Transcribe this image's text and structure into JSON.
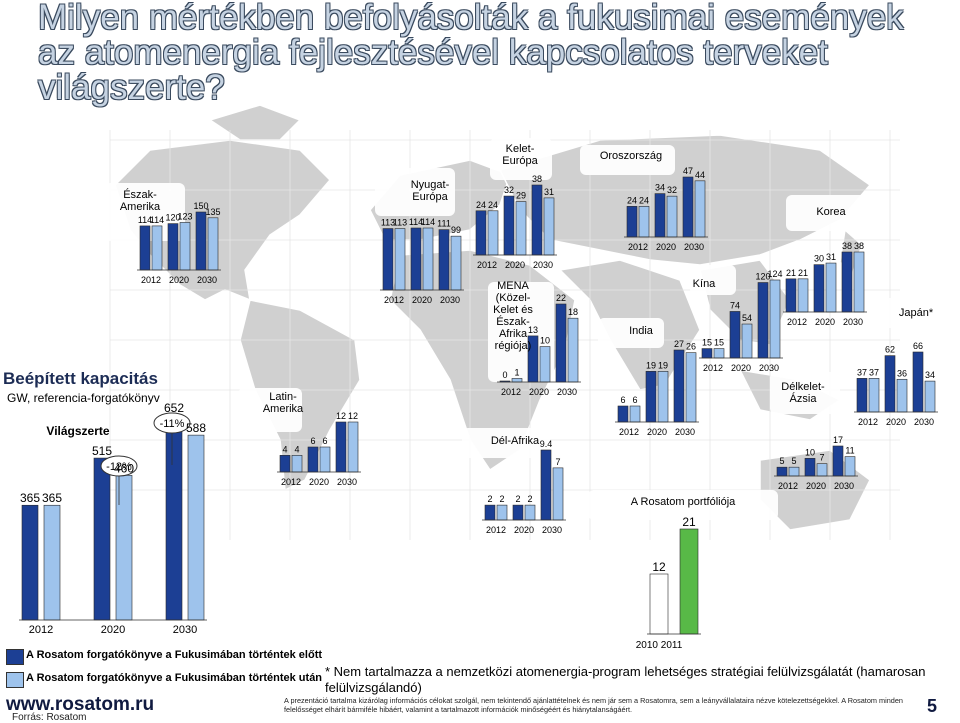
{
  "title": "Milyen mértékben befolyásolták a fukusimai események az atomenergia fejlesztésével kapcsolatos terveket világszerte?",
  "colors": {
    "before": "#1c3f94",
    "after": "#9ec3ec",
    "rosatom": "#58b947",
    "map": "#d0d0d0"
  },
  "side": {
    "heading": "Beépített kapacitás",
    "subheading": "GW, referencia-forgatókönyv"
  },
  "years": [
    "2012",
    "2020",
    "2030"
  ],
  "chart_data": [
    {
      "type": "bar",
      "region": "Világszerte",
      "categories": [
        "2012",
        "2020",
        "2030"
      ],
      "series": [
        {
          "values": [
            365,
            515,
            652
          ]
        },
        {
          "values": [
            365,
            460,
            588
          ]
        }
      ],
      "annotations": [
        "-12%",
        "-11%"
      ]
    },
    {
      "type": "bar",
      "region": "Észak-Amerika",
      "categories": [
        "2012",
        "2020",
        "2030"
      ],
      "series": [
        {
          "values": [
            114,
            120,
            150
          ]
        },
        {
          "values": [
            114,
            123,
            135
          ]
        }
      ]
    },
    {
      "type": "bar",
      "region": "Latin-Amerika",
      "categories": [
        "2012",
        "2020",
        "2030"
      ],
      "series": [
        {
          "values": [
            4,
            6,
            12
          ]
        },
        {
          "values": [
            4,
            6,
            12
          ]
        }
      ]
    },
    {
      "type": "bar",
      "region": "Nyugat-Európa",
      "categories": [
        "2012",
        "2020",
        "2030"
      ],
      "series": [
        {
          "values": [
            113,
            114,
            111
          ]
        },
        {
          "values": [
            113,
            114,
            99
          ]
        }
      ]
    },
    {
      "type": "bar",
      "region": "Kelet-Európa",
      "categories": [
        "2012",
        "2020",
        "2030"
      ],
      "series": [
        {
          "values": [
            24,
            32,
            38
          ]
        },
        {
          "values": [
            24,
            29,
            31
          ]
        }
      ]
    },
    {
      "type": "bar",
      "region": "MENA (Közel-Kelet és Észak-Afrika régiója)",
      "categories": [
        "2012",
        "2020",
        "2030"
      ],
      "series": [
        {
          "values": [
            0,
            13,
            22
          ]
        },
        {
          "values": [
            1,
            10,
            18
          ]
        }
      ]
    },
    {
      "type": "bar",
      "region": "Dél-Afrika",
      "categories": [
        "2012",
        "2020",
        "2030"
      ],
      "series": [
        {
          "values": [
            2,
            2,
            9.4
          ]
        },
        {
          "values": [
            2,
            2,
            7
          ]
        }
      ]
    },
    {
      "type": "bar",
      "region": "Oroszország",
      "categories": [
        "2012",
        "2020",
        "2030"
      ],
      "series": [
        {
          "values": [
            24,
            34,
            47
          ]
        },
        {
          "values": [
            24,
            32,
            44
          ]
        }
      ]
    },
    {
      "type": "bar",
      "region": "India",
      "categories": [
        "2012",
        "2020",
        "2030"
      ],
      "series": [
        {
          "values": [
            6,
            19,
            27
          ]
        },
        {
          "values": [
            6,
            19,
            26
          ]
        }
      ]
    },
    {
      "type": "bar",
      "region": "Kína",
      "categories": [
        "2012",
        "2020",
        "2030"
      ],
      "series": [
        {
          "values": [
            15,
            74,
            120
          ]
        },
        {
          "values": [
            15,
            54,
            124
          ]
        }
      ]
    },
    {
      "type": "bar",
      "region": "Korea",
      "categories": [
        "2012",
        "2020",
        "2030"
      ],
      "series": [
        {
          "values": [
            21,
            30,
            38
          ]
        },
        {
          "values": [
            21,
            31,
            38
          ]
        }
      ]
    },
    {
      "type": "bar",
      "region": "Japán*",
      "categories": [
        "2012",
        "2020",
        "2030"
      ],
      "series": [
        {
          "values": [
            37,
            62,
            66
          ]
        },
        {
          "values": [
            37,
            36,
            34
          ]
        }
      ]
    },
    {
      "type": "bar",
      "region": "Délkelet-Ázsia",
      "categories": [
        "2012",
        "2020",
        "2030"
      ],
      "series": [
        {
          "values": [
            5,
            10,
            17
          ]
        },
        {
          "values": [
            5,
            7,
            11
          ]
        }
      ]
    },
    {
      "type": "bar",
      "region": "A Rosatom portfóliója",
      "categories": [
        "2010",
        "2011"
      ],
      "series": [
        {
          "values": [
            12,
            21
          ]
        }
      ]
    }
  ],
  "legend": {
    "before": "A Rosatom forgatókönyve a Fukusimában történtek előtt",
    "after": "A Rosatom forgatókönyve a Fukusimában történtek után"
  },
  "footer": {
    "url": "www.rosatom.ru",
    "source": "Forrás: Rosatom",
    "note": "* Nem tartalmazza a nemzetközi atomenergia-program lehetséges stratégiai felülvizsgálatát (hamarosan felülvizsgálandó)",
    "fine": "A prezentáció tartalma kizárólag információs célokat szolgál, nem tekintendő ajánlattételnek és nem jár sem a Rosatomra, sem a leányvállalataira nézve kötelezettségekkel. A Rosatom minden felelősséget elhárít bármiféle hibáért, valamint a tartalmazott információk minőségéért és hiánytalanságáért.",
    "page": "5"
  }
}
